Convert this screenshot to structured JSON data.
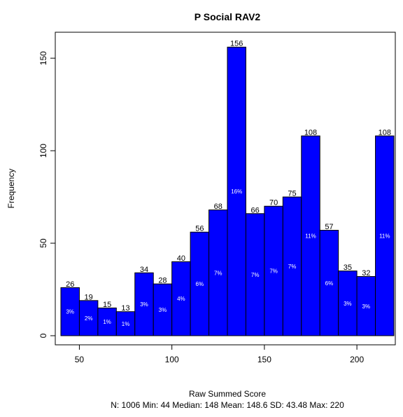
{
  "chart_data": {
    "type": "bar",
    "title": "P Social RAV2",
    "xlabel": "Raw Summed Score",
    "ylabel": "Frequency",
    "summary": "N: 1006 Min: 44  Median: 148  Mean: 148.6  SD: 43.48  Max: 220",
    "bar_color": "#0000ff",
    "bin_width": 10,
    "xlim": [
      40,
      220
    ],
    "ylim": [
      0,
      160
    ],
    "x_ticks": [
      50,
      100,
      150,
      200
    ],
    "y_ticks": [
      0,
      50,
      100,
      150
    ],
    "bins": [
      {
        "start": 40,
        "end": 50,
        "count": 26,
        "pct": "3%"
      },
      {
        "start": 50,
        "end": 60,
        "count": 19,
        "pct": "2%"
      },
      {
        "start": 60,
        "end": 70,
        "count": 15,
        "pct": "1%"
      },
      {
        "start": 70,
        "end": 80,
        "count": 13,
        "pct": "1%"
      },
      {
        "start": 80,
        "end": 90,
        "count": 34,
        "pct": "3%"
      },
      {
        "start": 90,
        "end": 100,
        "count": 28,
        "pct": "3%"
      },
      {
        "start": 100,
        "end": 110,
        "count": 40,
        "pct": "4%"
      },
      {
        "start": 110,
        "end": 120,
        "count": 56,
        "pct": "6%"
      },
      {
        "start": 120,
        "end": 130,
        "count": 68,
        "pct": "7%"
      },
      {
        "start": 130,
        "end": 140,
        "count": 156,
        "pct": "16%"
      },
      {
        "start": 140,
        "end": 150,
        "count": 66,
        "pct": "7%"
      },
      {
        "start": 150,
        "end": 160,
        "count": 70,
        "pct": "7%"
      },
      {
        "start": 160,
        "end": 170,
        "count": 75,
        "pct": "7%"
      },
      {
        "start": 170,
        "end": 180,
        "count": 108,
        "pct": "11%"
      },
      {
        "start": 180,
        "end": 190,
        "count": 57,
        "pct": "6%"
      },
      {
        "start": 190,
        "end": 200,
        "count": 35,
        "pct": "3%"
      },
      {
        "start": 200,
        "end": 210,
        "count": 32,
        "pct": "3%"
      },
      {
        "start": 210,
        "end": 220,
        "count": 108,
        "pct": "11%"
      }
    ]
  }
}
